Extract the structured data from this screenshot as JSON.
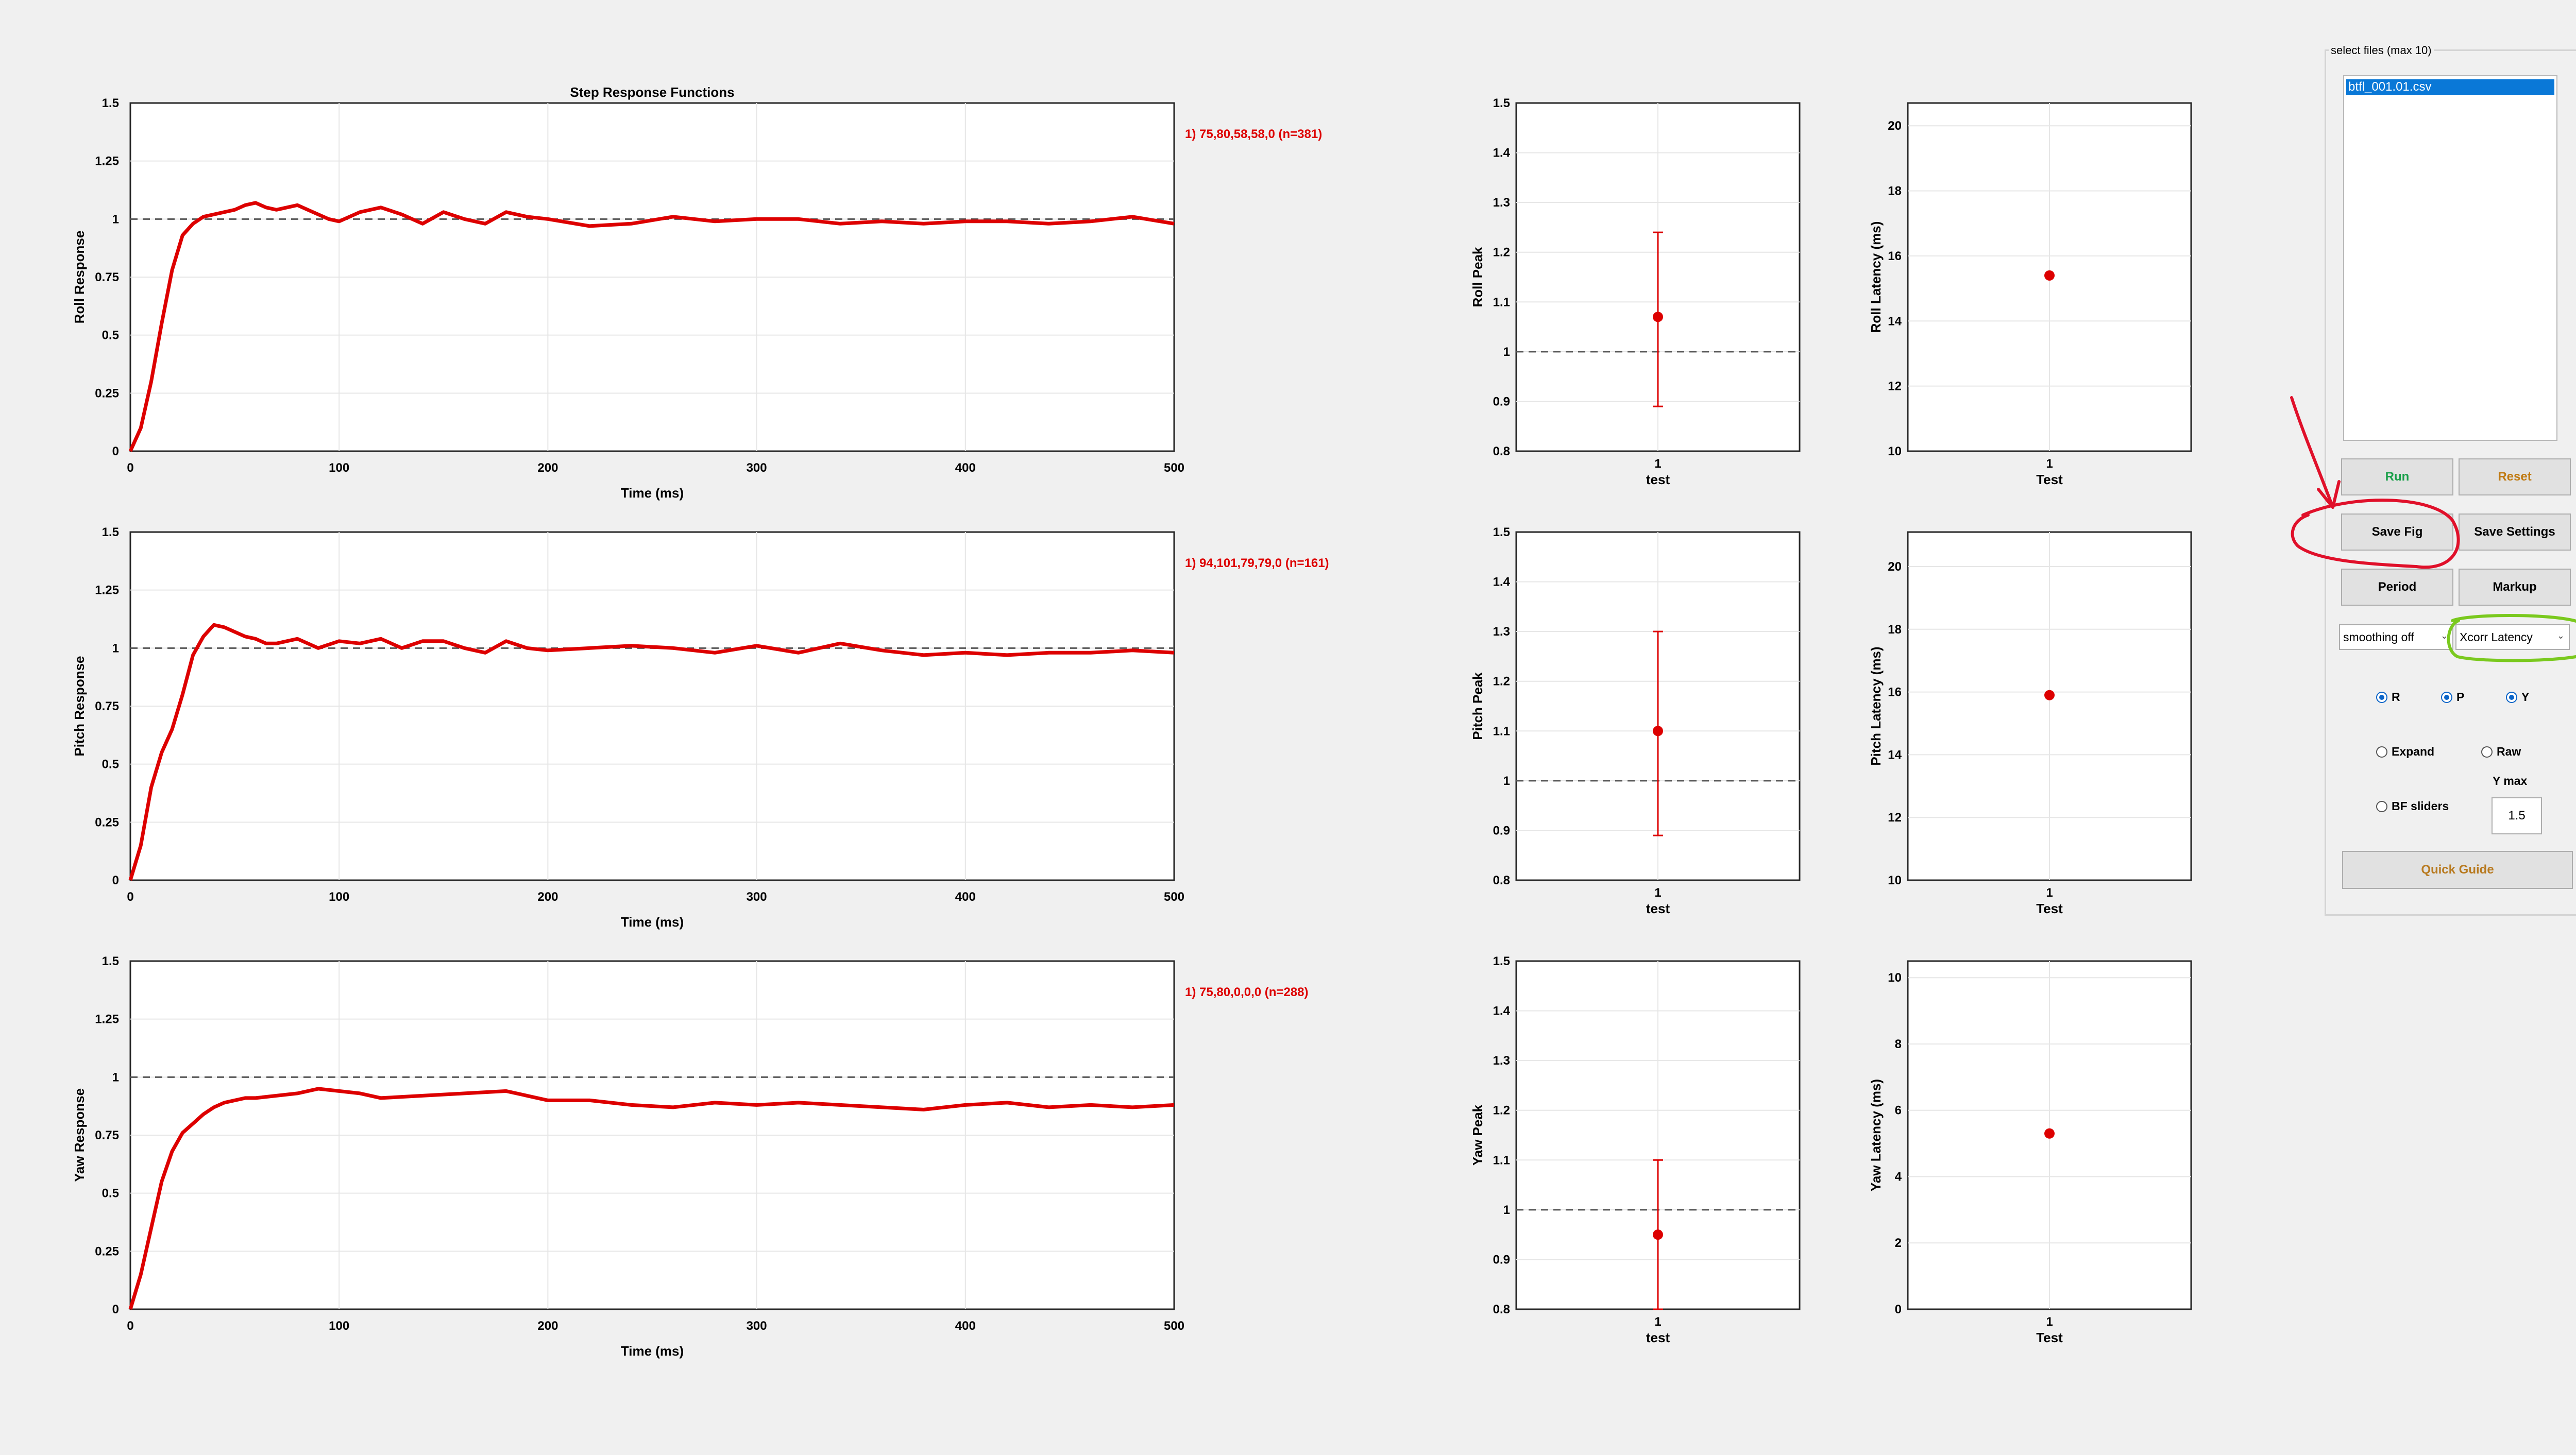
{
  "colors": {
    "series": "#dd0000",
    "reference": "#555555",
    "grid": "#e6e6e6",
    "run_label": "#1aa04a",
    "reset_label": "#c07a12",
    "guide_label": "#b87a20",
    "annotation_red": "#e0102a",
    "annotation_green": "#7ac91e"
  },
  "step_plots": [
    {
      "title": "Step Response Functions",
      "ylabel": "Roll Response",
      "xlabel": "Time (ms)",
      "annotation": "1) 75,80,58,58,0  (n=381)",
      "x_ticks": [
        "0",
        "100",
        "200",
        "300",
        "400",
        "500"
      ],
      "y_ticks": [
        "0",
        "0.25",
        "0.5",
        "0.75",
        "1",
        "1.25",
        "1.5"
      ],
      "xlim": [
        0,
        500
      ],
      "ylim": [
        0,
        1.5
      ],
      "reference": 1,
      "x": [
        0,
        5,
        10,
        15,
        20,
        25,
        30,
        35,
        40,
        45,
        50,
        55,
        60,
        65,
        70,
        75,
        80,
        85,
        90,
        95,
        100,
        110,
        120,
        130,
        140,
        150,
        160,
        170,
        180,
        190,
        200,
        220,
        240,
        260,
        280,
        300,
        320,
        340,
        360,
        380,
        400,
        420,
        440,
        460,
        480,
        500
      ],
      "y": [
        0,
        0.1,
        0.3,
        0.55,
        0.78,
        0.93,
        0.98,
        1.01,
        1.02,
        1.03,
        1.04,
        1.06,
        1.07,
        1.05,
        1.04,
        1.05,
        1.06,
        1.04,
        1.02,
        1.0,
        0.99,
        1.03,
        1.05,
        1.02,
        0.98,
        1.03,
        1.0,
        0.98,
        1.03,
        1.01,
        1.0,
        0.97,
        0.98,
        1.01,
        0.99,
        1.0,
        1.0,
        0.98,
        0.99,
        0.98,
        0.99,
        0.99,
        0.98,
        0.99,
        1.01,
        0.98
      ]
    },
    {
      "title": "",
      "ylabel": "Pitch Response",
      "xlabel": "Time (ms)",
      "annotation": "1) 94,101,79,79,0  (n=161)",
      "x_ticks": [
        "0",
        "100",
        "200",
        "300",
        "400",
        "500"
      ],
      "y_ticks": [
        "0",
        "0.25",
        "0.5",
        "0.75",
        "1",
        "1.25",
        "1.5"
      ],
      "xlim": [
        0,
        500
      ],
      "ylim": [
        0,
        1.5
      ],
      "reference": 1,
      "x": [
        0,
        5,
        10,
        15,
        20,
        25,
        30,
        35,
        40,
        45,
        50,
        55,
        60,
        65,
        70,
        80,
        90,
        100,
        110,
        120,
        130,
        140,
        150,
        160,
        170,
        180,
        190,
        200,
        220,
        240,
        260,
        280,
        300,
        320,
        340,
        360,
        380,
        400,
        420,
        440,
        460,
        480,
        500
      ],
      "y": [
        0,
        0.15,
        0.4,
        0.55,
        0.65,
        0.8,
        0.97,
        1.05,
        1.1,
        1.09,
        1.07,
        1.05,
        1.04,
        1.02,
        1.02,
        1.04,
        1.0,
        1.03,
        1.02,
        1.04,
        1.0,
        1.03,
        1.03,
        1.0,
        0.98,
        1.03,
        1.0,
        0.99,
        1.0,
        1.01,
        1.0,
        0.98,
        1.01,
        0.98,
        1.02,
        0.99,
        0.97,
        0.98,
        0.97,
        0.98,
        0.98,
        0.99,
        0.98
      ]
    },
    {
      "title": "",
      "ylabel": "Yaw Response",
      "xlabel": "Time (ms)",
      "annotation": "1) 75,80,0,0,0  (n=288)",
      "x_ticks": [
        "0",
        "100",
        "200",
        "300",
        "400",
        "500"
      ],
      "y_ticks": [
        "0",
        "0.25",
        "0.5",
        "0.75",
        "1",
        "1.25",
        "1.5"
      ],
      "xlim": [
        0,
        500
      ],
      "ylim": [
        0,
        1.5
      ],
      "reference": 1,
      "x": [
        0,
        5,
        10,
        15,
        20,
        25,
        30,
        35,
        40,
        45,
        50,
        55,
        60,
        70,
        80,
        90,
        100,
        110,
        120,
        140,
        160,
        180,
        190,
        200,
        220,
        240,
        260,
        280,
        300,
        320,
        340,
        360,
        380,
        400,
        420,
        440,
        460,
        480,
        500
      ],
      "y": [
        0,
        0.15,
        0.35,
        0.55,
        0.68,
        0.76,
        0.8,
        0.84,
        0.87,
        0.89,
        0.9,
        0.91,
        0.91,
        0.92,
        0.93,
        0.95,
        0.94,
        0.93,
        0.91,
        0.92,
        0.93,
        0.94,
        0.92,
        0.9,
        0.9,
        0.88,
        0.87,
        0.89,
        0.88,
        0.89,
        0.88,
        0.87,
        0.86,
        0.88,
        0.89,
        0.87,
        0.88,
        0.87,
        0.88
      ]
    }
  ],
  "peak_plots": [
    {
      "ylabel": "Roll Peak",
      "x_tick": "1",
      "xlabel": "test",
      "y_ticks": [
        "0.8",
        "0.9",
        "1",
        "1.1",
        "1.2",
        "1.3",
        "1.4",
        "1.5"
      ],
      "ylim": [
        0.8,
        1.5
      ],
      "reference": 1,
      "value": 1.07,
      "err_low": 0.89,
      "err_high": 1.24
    },
    {
      "ylabel": "Pitch Peak",
      "x_tick": "1",
      "xlabel": "test",
      "y_ticks": [
        "0.8",
        "0.9",
        "1",
        "1.1",
        "1.2",
        "1.3",
        "1.4",
        "1.5"
      ],
      "ylim": [
        0.8,
        1.5
      ],
      "reference": 1,
      "value": 1.1,
      "err_low": 0.89,
      "err_high": 1.3
    },
    {
      "ylabel": "Yaw Peak",
      "x_tick": "1",
      "xlabel": "test",
      "y_ticks": [
        "0.8",
        "0.9",
        "1",
        "1.1",
        "1.2",
        "1.3",
        "1.4",
        "1.5"
      ],
      "ylim": [
        0.8,
        1.5
      ],
      "reference": 1,
      "value": 0.95,
      "err_low": 0.8,
      "err_high": 1.1
    }
  ],
  "latency_plots": [
    {
      "ylabel": "Roll Latency (ms)",
      "x_tick": "1",
      "xlabel": "Test",
      "y_ticks": [
        "10",
        "12",
        "14",
        "16",
        "18",
        "20"
      ],
      "ylim": [
        10,
        20.7
      ],
      "value": 15.4
    },
    {
      "ylabel": "Pitch Latency (ms)",
      "x_tick": "1",
      "xlabel": "Test",
      "y_ticks": [
        "10",
        "12",
        "14",
        "16",
        "18",
        "20"
      ],
      "ylim": [
        10,
        21.1
      ],
      "value": 15.9
    },
    {
      "ylabel": "Yaw Latency (ms)",
      "x_tick": "1",
      "xlabel": "Test",
      "y_ticks": [
        "0",
        "2",
        "4",
        "6",
        "8",
        "10"
      ],
      "ylim": [
        0,
        10.5
      ],
      "value": 5.3
    }
  ],
  "controls": {
    "panel_title": "select files (max 10)",
    "files": [
      "btfl_001.01.csv"
    ],
    "run_label": "Run",
    "reset_label": "Reset",
    "save_fig_label": "Save Fig",
    "save_settings_label": "Save Settings",
    "period_label": "Period",
    "markup_label": "Markup",
    "smoothing_value": "smoothing off",
    "latency_method_value": "Xcorr Latency",
    "axis_r": "R",
    "axis_p": "P",
    "axis_y": "Y",
    "expand_label": "Expand",
    "raw_label": "Raw",
    "bf_sliders_label": "BF sliders",
    "ymax_label": "Y max",
    "ymax_value": "1.5",
    "quick_guide_label": "Quick Guide"
  }
}
